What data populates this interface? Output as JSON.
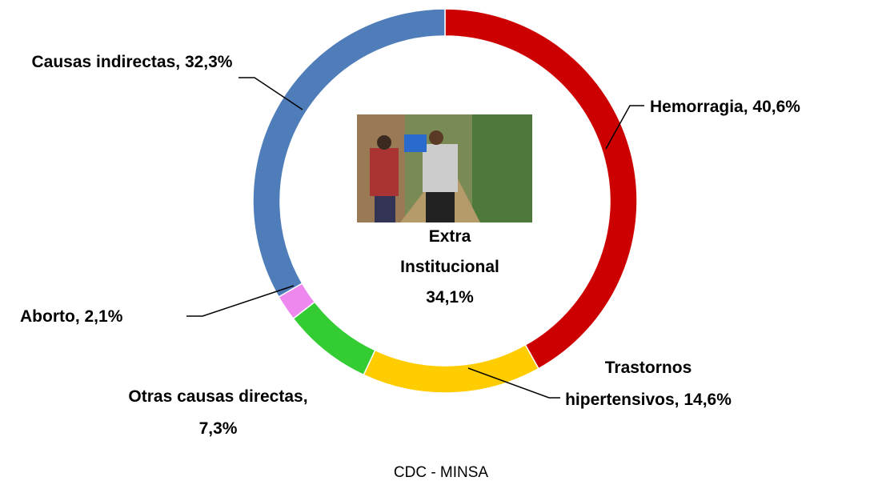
{
  "chart_data": {
    "type": "donut",
    "categories": [
      "Hemorragia,",
      "Trastornos hipertensivos,",
      "Otras causas directas,",
      "Aborto,",
      "Causas indirectas,"
    ],
    "values": [
      40.6,
      14.6,
      7.3,
      2.1,
      32.3
    ],
    "value_labels": [
      "40,6%",
      "14,6%",
      "7,3%",
      "2,1%",
      "32,3%"
    ],
    "colors": [
      "#cc0000",
      "#ffcc00",
      "#33cc33",
      "#ee88ee",
      "#4f7dba"
    ],
    "center_label": "Extra Institucional 34,1%",
    "source": "CDC -  MINSA"
  }
}
